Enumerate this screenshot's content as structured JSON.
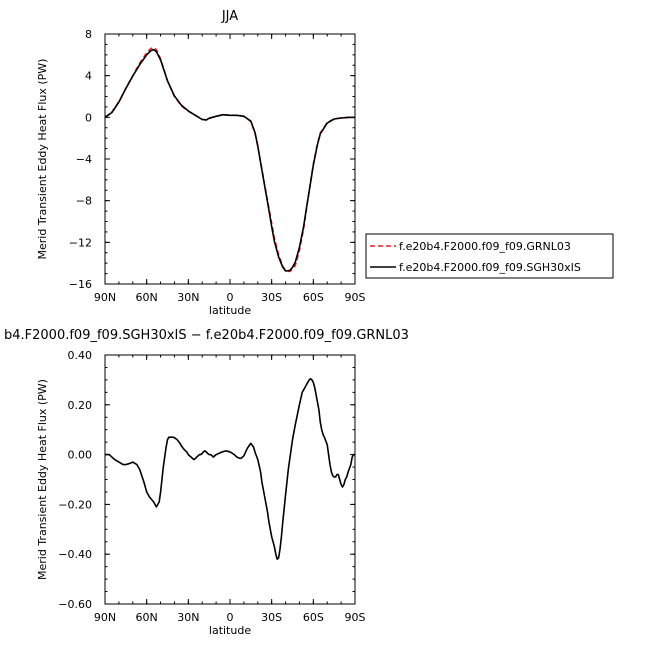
{
  "chart_data": [
    {
      "type": "line",
      "title": "JJA",
      "xlabel": "latitude",
      "ylabel": "Merid Transient Eddy Heat Flux (PW)",
      "xlim": [
        -90,
        90
      ],
      "ylim": [
        -16,
        8
      ],
      "x_ticks": [
        -90,
        -60,
        -30,
        0,
        30,
        60,
        90
      ],
      "x_tick_labels": [
        "90N",
        "60N",
        "30N",
        "0",
        "30S",
        "60S",
        "90S"
      ],
      "y_ticks": [
        8,
        4,
        0,
        -4,
        -8,
        -12,
        -16
      ],
      "y_tick_labels": [
        "8",
        "4",
        "0",
        "−4",
        "−8",
        "−12",
        "−16"
      ],
      "legend_position": "right",
      "x": [
        -90,
        -85,
        -80,
        -75,
        -70,
        -65,
        -60,
        -57,
        -55,
        -53,
        -50,
        -45,
        -40,
        -35,
        -30,
        -25,
        -20,
        -17,
        -15,
        -10,
        -5,
        0,
        5,
        10,
        15,
        18,
        20,
        22,
        25,
        28,
        30,
        32,
        35,
        38,
        40,
        43,
        45,
        47,
        50,
        53,
        55,
        58,
        60,
        63,
        65,
        70,
        75,
        80,
        85,
        90
      ],
      "series": [
        {
          "name": "f.e20b4.F2000.f09_f09.GRNL03",
          "color": "#e02020",
          "dash": "dashed",
          "values": [
            0,
            0.5,
            1.5,
            2.8,
            4.0,
            5.2,
            6.2,
            6.6,
            6.7,
            6.5,
            5.6,
            3.5,
            2.0,
            1.1,
            0.6,
            0.2,
            -0.2,
            -0.25,
            -0.1,
            0.1,
            0.25,
            0.2,
            0.2,
            0.1,
            -0.4,
            -1.5,
            -2.8,
            -4.3,
            -6.5,
            -8.7,
            -10.2,
            -11.6,
            -13.2,
            -14.3,
            -14.7,
            -14.8,
            -14.6,
            -14.2,
            -12.8,
            -10.7,
            -8.8,
            -6.2,
            -4.5,
            -2.5,
            -1.5,
            -0.5,
            -0.15,
            -0.05,
            -0.01,
            0
          ]
        },
        {
          "name": "f.e20b4.F2000.f09_f09.SGH30xIS",
          "color": "#000000",
          "dash": "solid",
          "values": [
            0,
            0.46,
            1.46,
            2.76,
            3.97,
            5.05,
            6.0,
            6.4,
            6.5,
            6.3,
            5.5,
            3.5,
            2.07,
            1.16,
            0.62,
            0.2,
            -0.21,
            -0.25,
            -0.08,
            0.1,
            0.25,
            0.2,
            0.2,
            0.1,
            -0.35,
            -1.47,
            -2.75,
            -4.35,
            -6.6,
            -8.9,
            -10.5,
            -11.9,
            -13.4,
            -14.4,
            -14.75,
            -14.7,
            -14.4,
            -13.9,
            -12.5,
            -10.5,
            -8.75,
            -6.25,
            -4.6,
            -2.6,
            -1.58,
            -0.55,
            -0.16,
            -0.06,
            -0.01,
            0
          ]
        }
      ]
    },
    {
      "type": "line",
      "title": "b4.F2000.f09_f09.SGH30xIS − f.e20b4.F2000.f09_f09.GRNL03",
      "xlabel": "latitude",
      "ylabel": "Merid Transient Eddy Heat Flux (PW)",
      "xlim": [
        -90,
        90
      ],
      "ylim": [
        -0.6,
        0.4
      ],
      "x_ticks": [
        -90,
        -60,
        -30,
        0,
        30,
        60,
        90
      ],
      "x_tick_labels": [
        "90N",
        "60N",
        "30N",
        "0",
        "30S",
        "60S",
        "90S"
      ],
      "y_ticks": [
        0.4,
        0.2,
        0.0,
        -0.2,
        -0.4,
        -0.6
      ],
      "y_tick_labels": [
        "0.40",
        "0.20",
        "0.00",
        "−0.20",
        "−0.40",
        "−0.60"
      ],
      "x": [
        -90,
        -87,
        -85,
        -83,
        -80,
        -77,
        -75,
        -72,
        -70,
        -67,
        -65,
        -62,
        -60,
        -58,
        -55,
        -53,
        -51,
        -50,
        -48,
        -46,
        -45,
        -44,
        -43,
        -42,
        -41,
        -40,
        -38,
        -36,
        -35,
        -33,
        -31,
        -30,
        -28,
        -26,
        -25,
        -24,
        -23,
        -22,
        -21,
        -20,
        -19,
        -18,
        -17,
        -16,
        -15,
        -14,
        -13,
        -12,
        -10,
        -8,
        -6,
        -5,
        -3,
        -1,
        0,
        1,
        3,
        5,
        7,
        8,
        10,
        12,
        13,
        15,
        17,
        18,
        20,
        22,
        23,
        25,
        27,
        28,
        30,
        32,
        33,
        34,
        35,
        36,
        37,
        38,
        40,
        42,
        45,
        47,
        50,
        52,
        55,
        57,
        58,
        59,
        60,
        61,
        62,
        64,
        65,
        66,
        67,
        68,
        70,
        71,
        72,
        73,
        74,
        75,
        76,
        77,
        78,
        79,
        80,
        81,
        82,
        83,
        84,
        85,
        87,
        88,
        89,
        90
      ],
      "series": [
        {
          "name": "",
          "color": "#000000",
          "dash": "solid",
          "values": [
            0,
            0,
            -0.01,
            -0.02,
            -0.03,
            -0.04,
            -0.04,
            -0.035,
            -0.03,
            -0.04,
            -0.06,
            -0.11,
            -0.15,
            -0.17,
            -0.19,
            -0.21,
            -0.19,
            -0.15,
            -0.05,
            0.03,
            0.06,
            0.07,
            0.07,
            0.07,
            0.07,
            0.068,
            0.06,
            0.045,
            0.035,
            0.02,
            0.01,
            0.0,
            -0.01,
            -0.02,
            -0.016,
            -0.01,
            -0.005,
            0.0,
            0.0,
            0.005,
            0.012,
            0.015,
            0.01,
            0.004,
            0.0,
            0.0,
            -0.004,
            -0.01,
            0.0,
            0.005,
            0.01,
            0.012,
            0.015,
            0.013,
            0.01,
            0.008,
            0.0,
            -0.01,
            -0.015,
            -0.015,
            -0.005,
            0.02,
            0.03,
            0.045,
            0.03,
            0.01,
            -0.02,
            -0.07,
            -0.11,
            -0.17,
            -0.23,
            -0.27,
            -0.33,
            -0.37,
            -0.4,
            -0.42,
            -0.415,
            -0.38,
            -0.33,
            -0.27,
            -0.16,
            -0.06,
            0.06,
            0.12,
            0.2,
            0.25,
            0.28,
            0.3,
            0.305,
            0.3,
            0.29,
            0.27,
            0.24,
            0.18,
            0.13,
            0.1,
            0.08,
            0.07,
            0.04,
            0.0,
            -0.04,
            -0.07,
            -0.085,
            -0.09,
            -0.09,
            -0.08,
            -0.08,
            -0.1,
            -0.12,
            -0.13,
            -0.12,
            -0.1,
            -0.09,
            -0.07,
            -0.04,
            -0.01,
            0,
            0
          ]
        }
      ]
    }
  ]
}
